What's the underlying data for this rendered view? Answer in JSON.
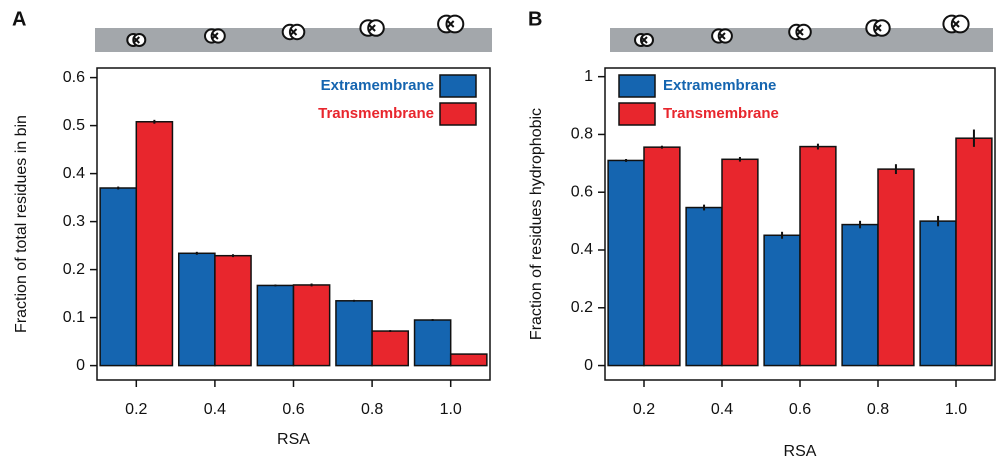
{
  "chart_data": [
    {
      "type": "bar",
      "panel_label": "A",
      "x_label": "RSA",
      "y_label": "Fraction of total residues in bin",
      "categories": [
        "0.2",
        "0.4",
        "0.6",
        "0.8",
        "1.0"
      ],
      "series": [
        {
          "name": "Extramembrane",
          "color": "#1565b0",
          "values": [
            0.37,
            0.234,
            0.167,
            0.135,
            0.095
          ],
          "errors": [
            0.003,
            0.003,
            0.002,
            0.002,
            0.002
          ]
        },
        {
          "name": "Transmembrane",
          "color": "#e8262d",
          "values": [
            0.508,
            0.229,
            0.168,
            0.072,
            0.024
          ],
          "errors": [
            0.004,
            0.003,
            0.003,
            0.002,
            0.001
          ]
        }
      ],
      "ylim": [
        -0.03,
        0.62
      ],
      "yticks": [
        0,
        0.1,
        0.2,
        0.3,
        0.4,
        0.5,
        0.6
      ],
      "legend": "top-right"
    },
    {
      "type": "bar",
      "panel_label": "B",
      "x_label": "RSA",
      "y_label": "Fraction of residues hydrophobic",
      "categories": [
        "0.2",
        "0.4",
        "0.6",
        "0.8",
        "1.0"
      ],
      "series": [
        {
          "name": "Extramembrane",
          "color": "#1565b0",
          "values": [
            0.71,
            0.547,
            0.451,
            0.488,
            0.5
          ],
          "errors": [
            0.005,
            0.01,
            0.012,
            0.013,
            0.018
          ]
        },
        {
          "name": "Transmembrane",
          "color": "#e8262d",
          "values": [
            0.756,
            0.714,
            0.758,
            0.68,
            0.787
          ],
          "errors": [
            0.005,
            0.008,
            0.01,
            0.017,
            0.03
          ]
        }
      ],
      "ylim": [
        -0.05,
        1.03
      ],
      "yticks": [
        0,
        0.2,
        0.4,
        0.6,
        0.8,
        1
      ],
      "legend": "top-left"
    }
  ]
}
